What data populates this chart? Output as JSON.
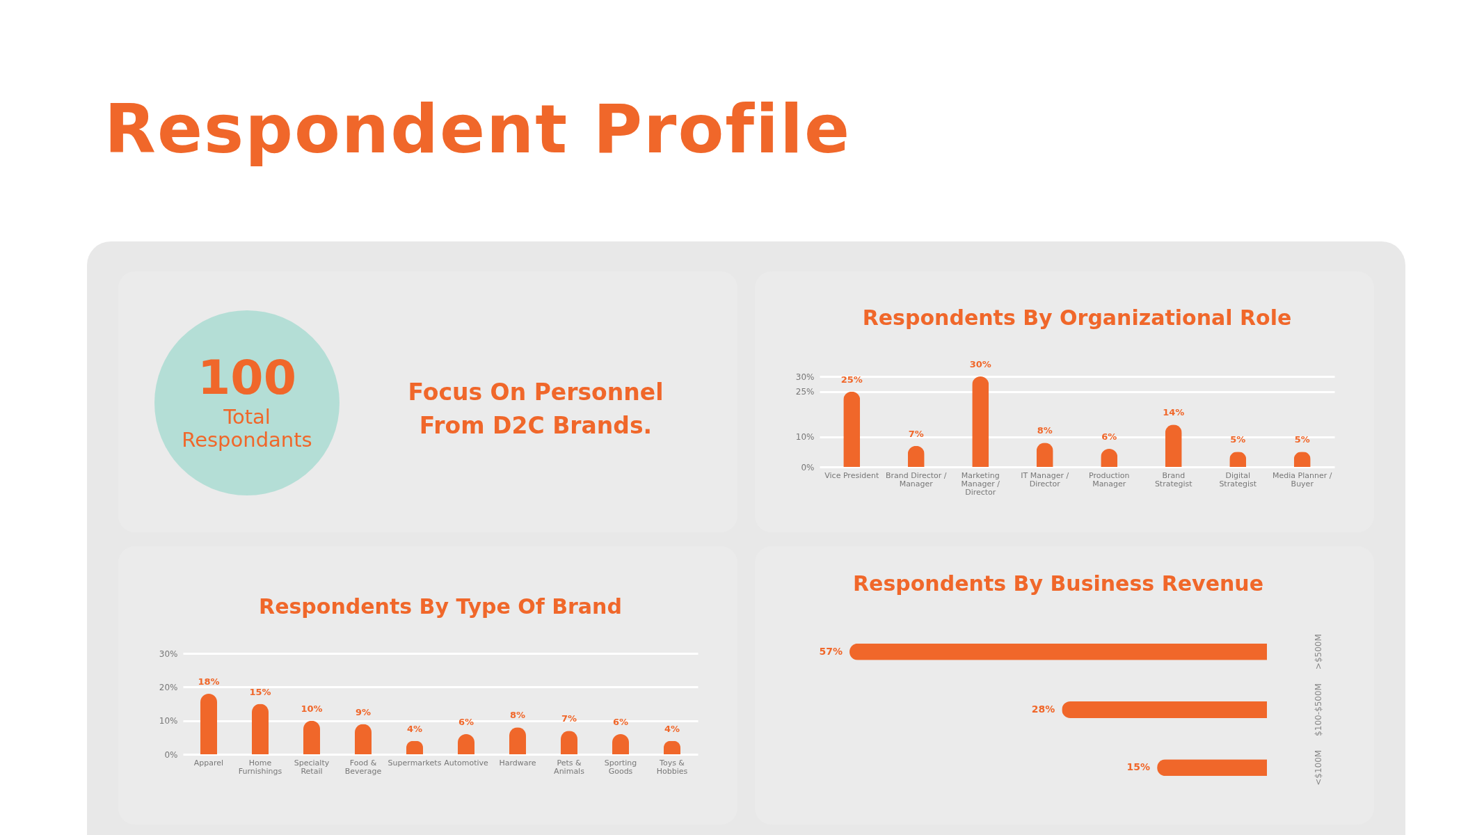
{
  "chart_data": [
    {
      "type": "other",
      "title": "Respondent Profile",
      "annotations": [
        "100",
        "Total Respondants",
        "Focus On Personnel From D2C Brands."
      ]
    },
    {
      "type": "bar",
      "title": "Respondents By Organizational Role",
      "categories": [
        "Vice President",
        "Brand Director / Manager",
        "Marketing Manager / Director",
        "IT Manager / Director",
        "Production Manager",
        "Brand Strategist",
        "Digital Strategist",
        "Media Planner / Buyer"
      ],
      "values": [
        25,
        7,
        30,
        8,
        6,
        14,
        5,
        5
      ],
      "value_labels": [
        "25%",
        "7%",
        "30%",
        "8%",
        "6%",
        "14%",
        "5%",
        "5%"
      ],
      "color": "#f0672a",
      "ylim": [
        0,
        30
      ],
      "yticks": [
        {
          "value": 0,
          "label": "0%"
        },
        {
          "value": 10,
          "label": "10%"
        },
        {
          "value": 25,
          "label": "25%"
        },
        {
          "value": 30,
          "label": "30%"
        }
      ],
      "grid": "y"
    },
    {
      "type": "bar",
      "title": "Respondents By Type Of Brand",
      "categories": [
        "Apparel",
        "Home Furnishings",
        "Specialty Retail",
        "Food & Beverage",
        "Supermarkets",
        "Automotive",
        "Hardware",
        "Pets & Animals",
        "Sporting Goods",
        "Toys & Hobbies"
      ],
      "values": [
        18,
        15,
        10,
        9,
        4,
        6,
        8,
        7,
        6,
        4
      ],
      "value_labels": [
        "18%",
        "15%",
        "10%",
        "9%",
        "4%",
        "6%",
        "8%",
        "7%",
        "6%",
        "4%"
      ],
      "color": "#f0672a",
      "ylim": [
        0,
        30
      ],
      "yticks": [
        {
          "value": 0,
          "label": "0%"
        },
        {
          "value": 10,
          "label": "10%"
        },
        {
          "value": 20,
          "label": "20%"
        },
        {
          "value": 30,
          "label": "30%"
        }
      ],
      "grid": "y"
    },
    {
      "type": "bar",
      "orientation": "horizontal",
      "title": "Respondents By Business Revenue",
      "categories": [
        ">$500M",
        "$100-$500M",
        "<$100M"
      ],
      "values": [
        57,
        28,
        15
      ],
      "value_labels": [
        "57%",
        "28%",
        "15%"
      ],
      "color": "#f0672a"
    }
  ]
}
